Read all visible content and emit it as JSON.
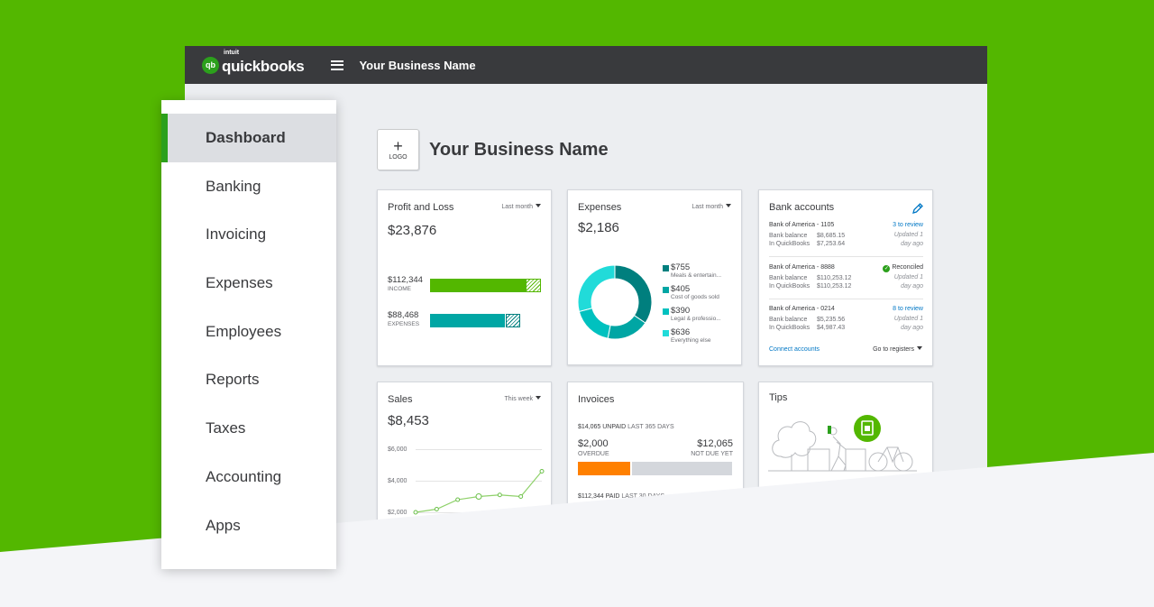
{
  "app": {
    "brand_small": "intuit",
    "brand": "quickbooks",
    "brand_mark": "qb",
    "business_name": "Your Business Name",
    "menu_icon": "hamburger-menu-icon"
  },
  "sidebar": {
    "items": [
      {
        "label": "Dashboard",
        "active": true
      },
      {
        "label": "Banking"
      },
      {
        "label": "Invoicing"
      },
      {
        "label": "Expenses"
      },
      {
        "label": "Employees"
      },
      {
        "label": "Reports"
      },
      {
        "label": "Taxes"
      },
      {
        "label": "Accounting"
      },
      {
        "label": "Apps"
      }
    ]
  },
  "header": {
    "logo_plus": "+",
    "logo_label": "LOGO",
    "title": "Your Business Name"
  },
  "colors": {
    "brand_green": "#2ca01c",
    "background_green": "#53b700",
    "income_bar": "#53b700",
    "expenses_bar": "#00a6a4",
    "overdue_bar": "#ff8000",
    "not_due_bar": "#d4d7dc",
    "link_blue": "#0077c5"
  },
  "profit_loss": {
    "title": "Profit and Loss",
    "filter": "Last month",
    "amount": "$23,876",
    "income_value": "$112,344",
    "income_label": "INCOME",
    "expenses_value": "$88,468",
    "expenses_label": "EXPENSES"
  },
  "expenses": {
    "title": "Expenses",
    "filter": "Last month",
    "amount": "$2,186",
    "legend": [
      {
        "value": "$755",
        "label": "Meals & entertain...",
        "color": "#007f7e"
      },
      {
        "value": "$405",
        "label": "Cost of goods sold",
        "color": "#00a6a4"
      },
      {
        "value": "$390",
        "label": "Legal & professio...",
        "color": "#00c1bf"
      },
      {
        "value": "$636",
        "label": "Everything else",
        "color": "#21dbd9"
      }
    ]
  },
  "bank_accounts": {
    "title": "Bank accounts",
    "edit_icon": "pencil-icon",
    "accounts": [
      {
        "name": "Bank of America - 1105",
        "bank_label": "Bank balance",
        "bank_balance": "$8,685.15",
        "qb_label": "In QuickBooks",
        "qb_balance": "$7,253.64",
        "status": "3 to review",
        "updated_1": "Updated 1",
        "updated_2": "day ago"
      },
      {
        "name": "Bank of America - 8888",
        "bank_label": "Bank balance",
        "bank_balance": "$110,253.12",
        "qb_label": "In QuickBooks",
        "qb_balance": "$110,253.12",
        "status": "Reconciled",
        "updated_1": "Updated 1",
        "updated_2": "day ago"
      },
      {
        "name": "Bank of America - 0214",
        "bank_label": "Bank balance",
        "bank_balance": "$5,235.56",
        "qb_label": "In QuickBooks",
        "qb_balance": "$4,987.43",
        "status": "8 to review",
        "updated_1": "Updated 1",
        "updated_2": "day ago"
      }
    ],
    "connect_link": "Connect accounts",
    "registers_link": "Go to registers"
  },
  "sales": {
    "title": "Sales",
    "filter": "This week",
    "amount": "$8,453",
    "ticks": [
      "$6,000",
      "$4,000",
      "$2,000"
    ]
  },
  "invoices": {
    "title": "Invoices",
    "unpaid_amount": "$14,065 UNPAID",
    "unpaid_period": "LAST 365 DAYS",
    "overdue_amount": "$2,000",
    "overdue_label": "OVERDUE",
    "not_due_amount": "$12,065",
    "not_due_label": "NOT DUE YET",
    "overdue_fraction": 0.142,
    "paid_amount": "$112,344 PAID",
    "paid_period": "LAST 30 DAYS"
  },
  "tips": {
    "title": "Tips",
    "illustration": "tree-person-bicycle-illustration",
    "badge_icon": "document-icon"
  },
  "chart_data": [
    {
      "type": "bar",
      "categories": [
        "INCOME",
        "EXPENSES"
      ],
      "values": [
        112344,
        88468
      ]
    },
    {
      "type": "pie",
      "categories": [
        "Meals & entertain...",
        "Cost of goods sold",
        "Legal & professio...",
        "Everything else"
      ],
      "values": [
        755,
        405,
        390,
        636
      ]
    },
    {
      "type": "line",
      "yticks": [
        "$6,000",
        "$4,000",
        "$2,000"
      ],
      "ylim": [
        2000,
        6000
      ],
      "x": [
        1,
        2,
        3,
        4,
        5,
        6,
        7
      ],
      "values": [
        2000,
        2200,
        2800,
        3000,
        3100,
        3000,
        4600
      ]
    }
  ]
}
